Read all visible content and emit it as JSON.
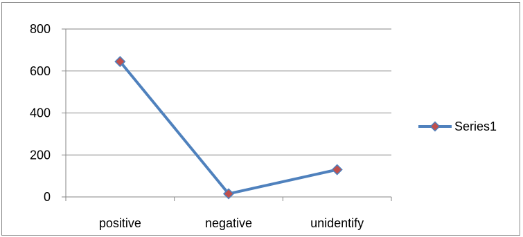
{
  "chart_data": {
    "type": "line",
    "categories": [
      "positive",
      "negative",
      "unidentify"
    ],
    "series": [
      {
        "name": "Series1",
        "values": [
          645,
          15,
          130
        ]
      }
    ],
    "title": "",
    "xlabel": "",
    "ylabel": "",
    "ylim": [
      0,
      800
    ],
    "yticks": [
      "0",
      "200",
      "400",
      "600",
      "800"
    ],
    "grid": true,
    "legend": "right",
    "colors": {
      "line": "#4F81BD",
      "marker_fill": "#C0504D",
      "marker_stroke": "#4F81BD",
      "gridline": "#868686",
      "axis": "#868686"
    }
  }
}
